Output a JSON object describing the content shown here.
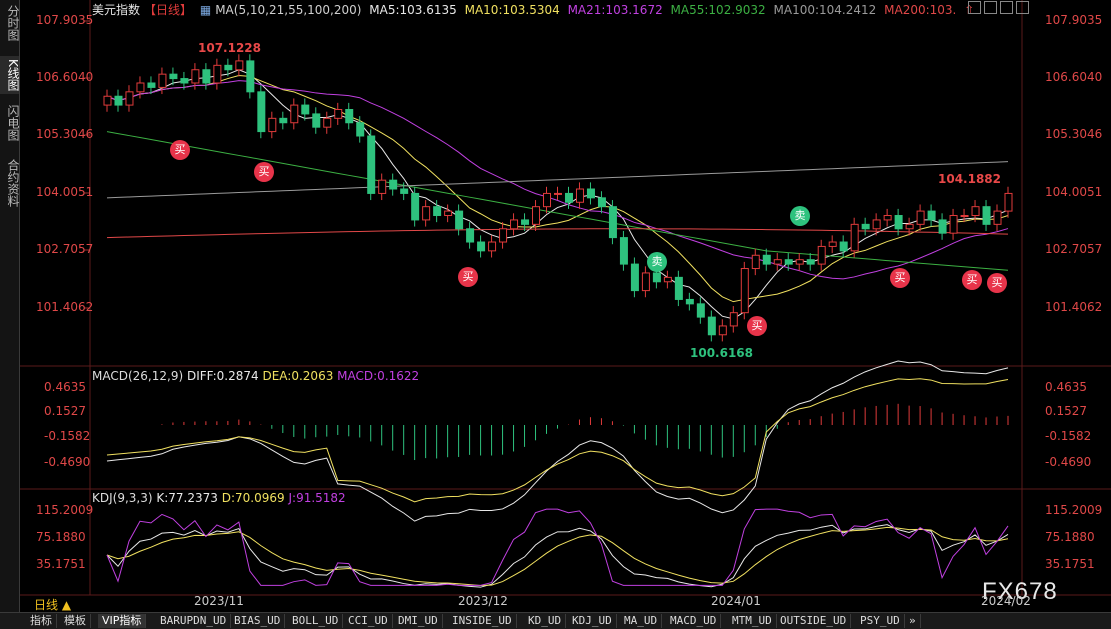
{
  "left_tabs": [
    {
      "label": "分时图",
      "active": false
    },
    {
      "label": "K线图",
      "active": true
    },
    {
      "label": "闪电图",
      "active": false
    },
    {
      "label": "合约资料",
      "active": false
    }
  ],
  "legend": {
    "title": "美元指数",
    "period": "【日线】",
    "ma_spec": "MA(5,10,21,55,100,200)",
    "ma5": "MA5:103.6135",
    "ma10": "MA10:103.5304",
    "ma21": "MA21:103.1672",
    "ma55": "MA55:102.9032",
    "ma100": "MA100:104.2412",
    "ma200": "MA200:103."
  },
  "colors": {
    "up": "#e03b3b",
    "down": "#2ec27e",
    "ma5": "#e8e8e8",
    "ma10": "#f0e060",
    "ma21": "#c040e0",
    "ma55": "#3cb043",
    "ma100": "#9a9a9a",
    "ma200": "#e04848"
  },
  "price_axis": [
    "107.9035",
    "106.6040",
    "105.3046",
    "104.0051",
    "102.7057",
    "101.4062"
  ],
  "price_annotations": {
    "high": "107.1228",
    "low": "100.6168",
    "last": "104.1882"
  },
  "macd": {
    "legend_name": "MACD(26,12,9)",
    "diff": "DIFF:0.2874",
    "dea": "DEA:0.2063",
    "macd": "MACD:0.1622",
    "axis": [
      "0.4635",
      "0.1527",
      "-0.1582",
      "-0.4690"
    ]
  },
  "kdj": {
    "legend_name": "KDJ(9,3,3)",
    "k": "K:77.2373",
    "d": "D:70.0969",
    "j": "J:91.5182",
    "axis": [
      "115.2009",
      "75.1880",
      "35.1751"
    ]
  },
  "date_axis": [
    "2023/11",
    "2023/12",
    "2024/01",
    "2024/02"
  ],
  "signals": {
    "buy": "买",
    "sell": "卖"
  },
  "timeframe_label": "日线 ▲",
  "bottom_tabs": [
    "指标",
    "模板",
    "VIP指标",
    "BARUPDN_UD",
    "BIAS_UD",
    "BOLL_UD",
    "CCI_UD",
    "DMI_UD",
    "INSIDE_UD",
    "KD_UD",
    "KDJ_UD",
    "MA_UD",
    "MACD_UD",
    "MTM_UD",
    "OUTSIDE_UD",
    "PSY_UD"
  ],
  "watermark": "FX678"
}
